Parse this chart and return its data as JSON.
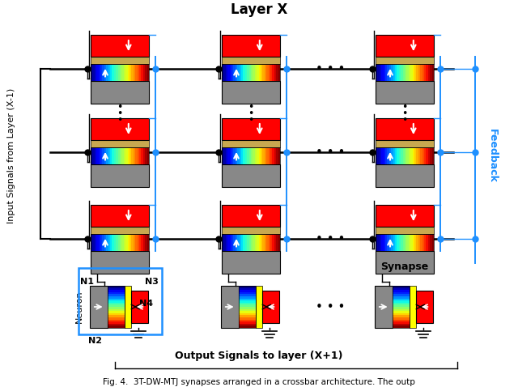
{
  "title": "Layer X",
  "ylabel_left": "Input Signals from Layer (X-1)",
  "xlabel_bottom": "Output Signals to layer (X+1)",
  "feedback_label": "Feedback",
  "synapse_label": "Synapse",
  "neuron_label": "Neuron",
  "n1_label": "N1",
  "n2_label": "N2",
  "n3_label": "N3",
  "n4_label": "N4",
  "caption": "Fig. 4.  3T-DW-MTJ synapses arranged in a crossbar architecture. The outp",
  "bg_color": "#ffffff",
  "black": "#000000",
  "blue": "#1E90FF",
  "red": "#FF0000",
  "gray": "#888888",
  "sandy": "#C8A850",
  "fig_width": 6.4,
  "fig_height": 4.78,
  "dpi": 100
}
